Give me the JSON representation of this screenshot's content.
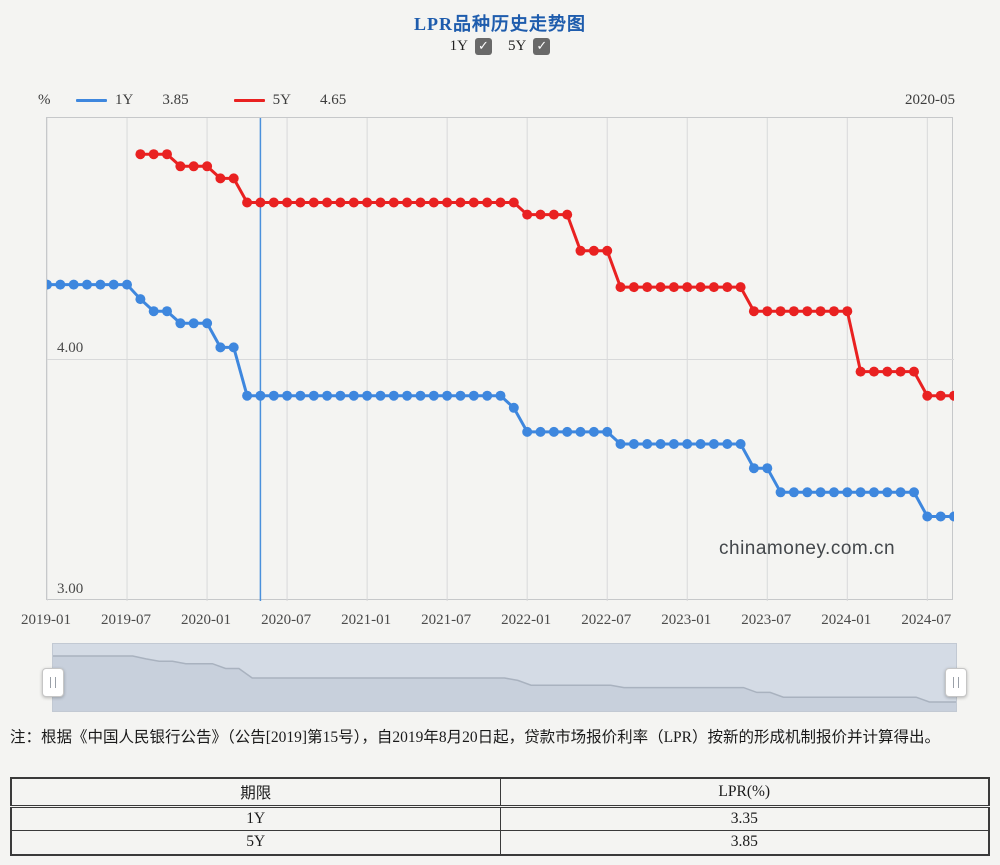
{
  "header": {
    "title": "LPR品种历史走势图",
    "series_toggles": [
      {
        "label": "1Y",
        "checked": true
      },
      {
        "label": "5Y",
        "checked": true
      }
    ]
  },
  "legend": {
    "unit": "%",
    "items": [
      {
        "name": "1Y",
        "value": "3.85",
        "color": "#3e87de"
      },
      {
        "name": "5Y",
        "value": "4.65",
        "color": "#e92121"
      }
    ],
    "hover_date": "2020-05"
  },
  "chart_data": {
    "type": "line",
    "title": "LPR品种历史走势图",
    "xlabel": "",
    "ylabel": "%",
    "ylim": [
      3.0,
      5.0
    ],
    "grid": true,
    "legend_position": "top",
    "x": [
      "2019-01",
      "2019-02",
      "2019-03",
      "2019-04",
      "2019-05",
      "2019-06",
      "2019-07",
      "2019-08",
      "2019-09",
      "2019-10",
      "2019-11",
      "2019-12",
      "2020-01",
      "2020-02",
      "2020-03",
      "2020-04",
      "2020-05",
      "2020-06",
      "2020-07",
      "2020-08",
      "2020-09",
      "2020-10",
      "2020-11",
      "2020-12",
      "2021-01",
      "2021-02",
      "2021-03",
      "2021-04",
      "2021-05",
      "2021-06",
      "2021-07",
      "2021-08",
      "2021-09",
      "2021-10",
      "2021-11",
      "2021-12",
      "2022-01",
      "2022-02",
      "2022-03",
      "2022-04",
      "2022-05",
      "2022-06",
      "2022-07",
      "2022-08",
      "2022-09",
      "2022-10",
      "2022-11",
      "2022-12",
      "2023-01",
      "2023-02",
      "2023-03",
      "2023-04",
      "2023-05",
      "2023-06",
      "2023-07",
      "2023-08",
      "2023-09",
      "2023-10",
      "2023-11",
      "2023-12",
      "2024-01",
      "2024-02",
      "2024-03",
      "2024-04",
      "2024-05",
      "2024-06",
      "2024-07",
      "2024-08",
      "2024-09"
    ],
    "x_tick_step": 6,
    "y_ticks": [
      {
        "label": "4.00",
        "value": 4.0
      },
      {
        "label": "3.00",
        "value": 3.0
      }
    ],
    "series": [
      {
        "name": "1Y",
        "color": "#3e87de",
        "values": [
          4.31,
          4.31,
          4.31,
          4.31,
          4.31,
          4.31,
          4.31,
          4.25,
          4.2,
          4.2,
          4.15,
          4.15,
          4.15,
          4.05,
          4.05,
          3.85,
          3.85,
          3.85,
          3.85,
          3.85,
          3.85,
          3.85,
          3.85,
          3.85,
          3.85,
          3.85,
          3.85,
          3.85,
          3.85,
          3.85,
          3.85,
          3.85,
          3.85,
          3.85,
          3.85,
          3.8,
          3.7,
          3.7,
          3.7,
          3.7,
          3.7,
          3.7,
          3.7,
          3.65,
          3.65,
          3.65,
          3.65,
          3.65,
          3.65,
          3.65,
          3.65,
          3.65,
          3.65,
          3.55,
          3.55,
          3.45,
          3.45,
          3.45,
          3.45,
          3.45,
          3.45,
          3.45,
          3.45,
          3.45,
          3.45,
          3.45,
          3.35,
          3.35,
          3.35
        ]
      },
      {
        "name": "5Y",
        "color": "#e92121",
        "values": [
          null,
          null,
          null,
          null,
          null,
          null,
          null,
          4.85,
          4.85,
          4.85,
          4.8,
          4.8,
          4.8,
          4.75,
          4.75,
          4.65,
          4.65,
          4.65,
          4.65,
          4.65,
          4.65,
          4.65,
          4.65,
          4.65,
          4.65,
          4.65,
          4.65,
          4.65,
          4.65,
          4.65,
          4.65,
          4.65,
          4.65,
          4.65,
          4.65,
          4.65,
          4.6,
          4.6,
          4.6,
          4.6,
          4.45,
          4.45,
          4.45,
          4.3,
          4.3,
          4.3,
          4.3,
          4.3,
          4.3,
          4.3,
          4.3,
          4.3,
          4.3,
          4.2,
          4.2,
          4.2,
          4.2,
          4.2,
          4.2,
          4.2,
          4.2,
          3.95,
          3.95,
          3.95,
          3.95,
          3.95,
          3.85,
          3.85,
          3.85
        ]
      }
    ],
    "hover": {
      "date": "2020-05",
      "index": 16,
      "values": {
        "1Y": "3.85",
        "5Y": "4.65"
      }
    },
    "hover_line_color": "#4a90dc"
  },
  "watermark": "chinamoney.com.cn",
  "navigator": {
    "series": "1Y",
    "area_color": "#c8d0dc",
    "line_color": "#a9b2bf"
  },
  "note": {
    "text": "注：根据《中国人民银行公告》（公告[2019]第15号），自2019年8月20日起，贷款市场报价利率（LPR）按新的形成机制报价并计算得出。"
  },
  "table": {
    "headers": [
      "期限",
      "LPR(%)"
    ],
    "rows": [
      [
        "1Y",
        "3.35"
      ],
      [
        "5Y",
        "3.85"
      ]
    ]
  }
}
